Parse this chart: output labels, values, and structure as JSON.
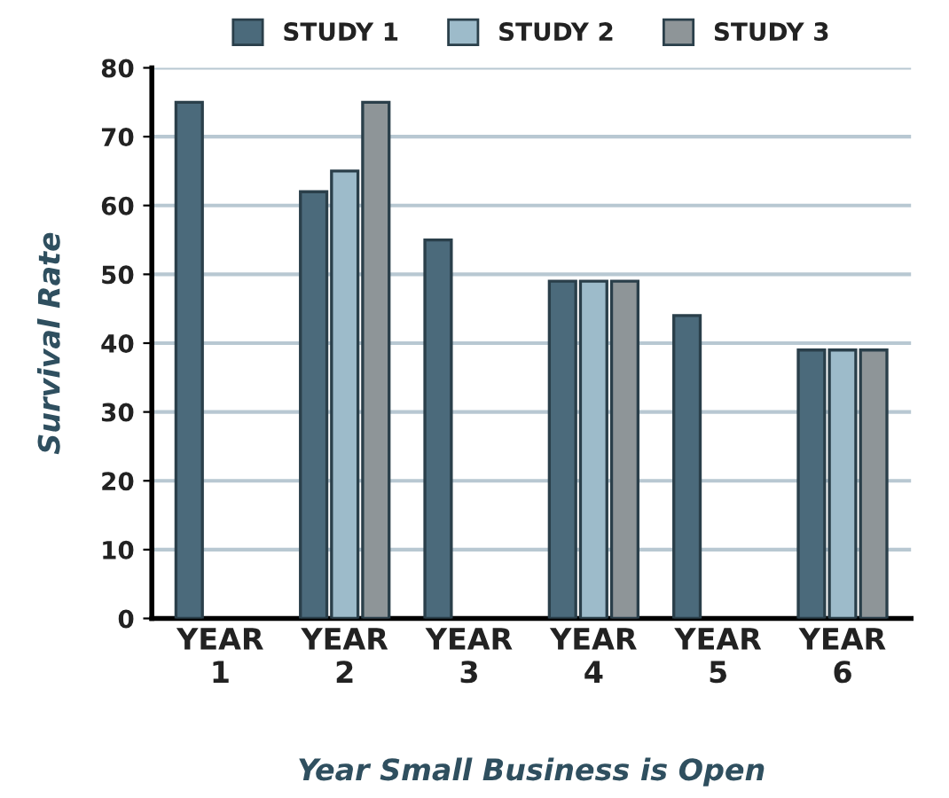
{
  "chart_data": {
    "type": "bar",
    "xlabel": "Year Small Business is Open",
    "ylabel": "Survival Rate",
    "categories": [
      "YEAR\n1",
      "YEAR\n2",
      "YEAR\n3",
      "YEAR\n4",
      "YEAR\n5",
      "YEAR\n6"
    ],
    "series": [
      {
        "name": "STUDY 1",
        "color": "#4b6a7b",
        "values": [
          75,
          62,
          55,
          49,
          44,
          39
        ]
      },
      {
        "name": "STUDY 2",
        "color": "#9dbbca",
        "values": [
          null,
          65,
          null,
          49,
          null,
          39
        ]
      },
      {
        "name": "STUDY 3",
        "color": "#8e9598",
        "values": [
          null,
          75,
          null,
          49,
          null,
          39
        ]
      }
    ],
    "ylim": [
      0,
      80
    ],
    "yticks": [
      0,
      10,
      20,
      30,
      40,
      50,
      60,
      70,
      80
    ],
    "grid": "y",
    "legend": "top"
  }
}
